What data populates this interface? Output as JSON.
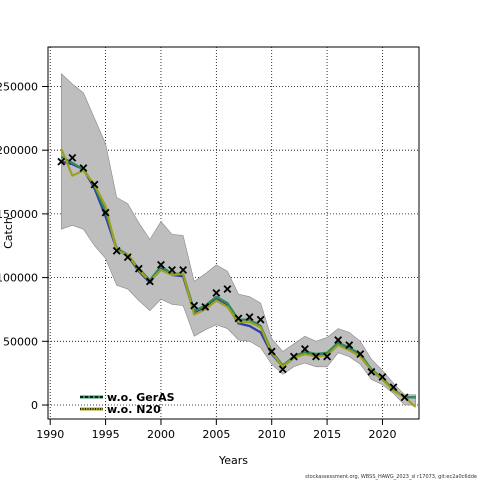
{
  "chart_data": {
    "type": "line",
    "title": "",
    "xlabel": "Years",
    "ylabel": "Catch",
    "xlim": [
      1989.8,
      2023.3
    ],
    "ylim": [
      -11000,
      281000
    ],
    "x_ticks": [
      1990,
      1995,
      2000,
      2005,
      2010,
      2015,
      2020
    ],
    "y_ticks": [
      0,
      50000,
      100000,
      150000,
      200000,
      250000
    ],
    "grid": true,
    "legend_position": "bottom-left",
    "colors": {
      "band": "#bebebe",
      "band_edge": "#888888",
      "blue": "#2a3fa0",
      "green": "#2e8b57",
      "olive": "#a0a020",
      "observed": "#000000"
    },
    "observed": {
      "marker": "x",
      "x": [
        1991,
        1992,
        1993,
        1994,
        1995,
        1996,
        1997,
        1998,
        1999,
        2000,
        2001,
        2002,
        2003,
        2004,
        2005,
        2006,
        2007,
        2008,
        2009,
        2010,
        2011,
        2012,
        2013,
        2014,
        2015,
        2016,
        2017,
        2018,
        2019,
        2020,
        2021,
        2022
      ],
      "y": [
        191000,
        194000,
        186000,
        173000,
        151000,
        121000,
        116000,
        107000,
        97000,
        110000,
        106000,
        106000,
        78000,
        77000,
        88000,
        91000,
        68000,
        69000,
        67000,
        42000,
        28000,
        38000,
        44000,
        38000,
        38000,
        51000,
        47000,
        40000,
        26000,
        22000,
        14000,
        6000
      ]
    },
    "confidence_band": {
      "x": [
        1991,
        1992,
        1993,
        1994,
        1995,
        1996,
        1997,
        1998,
        1999,
        2000,
        2001,
        2002,
        2003,
        2004,
        2005,
        2006,
        2007,
        2008,
        2009,
        2010,
        2011,
        2012,
        2013,
        2014,
        2015,
        2016,
        2017,
        2018,
        2019,
        2020,
        2021,
        2022,
        2023
      ],
      "upper": [
        260000,
        252000,
        245000,
        225000,
        205000,
        163000,
        158000,
        143000,
        130000,
        144000,
        134000,
        133000,
        97000,
        103000,
        110000,
        105000,
        87000,
        85000,
        80000,
        52000,
        42000,
        48000,
        54000,
        50000,
        53000,
        60000,
        57000,
        50000,
        36000,
        27000,
        17000,
        8000,
        8000
      ],
      "lower": [
        138000,
        141000,
        138000,
        125000,
        115000,
        94000,
        91000,
        82000,
        74000,
        83000,
        79000,
        78000,
        54000,
        59000,
        63000,
        60000,
        51000,
        50000,
        45000,
        32000,
        24000,
        30000,
        33000,
        30000,
        30000,
        41000,
        38000,
        32000,
        20000,
        16000,
        9000,
        0,
        0
      ]
    },
    "series": [
      {
        "name": "",
        "color": "#2a3fa0",
        "x": [
          1991,
          1992,
          1993,
          1994,
          1995,
          1996,
          1997,
          1998,
          1999,
          2000,
          2001,
          2002,
          2003,
          2004,
          2005,
          2006,
          2007,
          2008,
          2009,
          2010,
          2011,
          2012,
          2013,
          2014,
          2015,
          2016,
          2017,
          2018,
          2019,
          2020,
          2021,
          2022,
          2023
        ],
        "values": [
          191000,
          189000,
          185000,
          170000,
          148000,
          122000,
          117000,
          105000,
          96000,
          108000,
          102000,
          101000,
          72000,
          76000,
          83000,
          78000,
          64000,
          62000,
          57000,
          40000,
          30000,
          37000,
          41000,
          39000,
          40000,
          48000,
          44000,
          39000,
          27000,
          20000,
          12000,
          6000,
          6000
        ]
      },
      {
        "name": "w.o. GerAS",
        "color": "#2e8b57",
        "x": [
          1991,
          1992,
          1993,
          1994,
          1995,
          1996,
          1997,
          1998,
          1999,
          2000,
          2001,
          2002,
          2003,
          2004,
          2005,
          2006,
          2007,
          2008,
          2009,
          2010,
          2011,
          2012,
          2013,
          2014,
          2015,
          2016,
          2017,
          2018,
          2019,
          2020,
          2021,
          2022,
          2023
        ],
        "values": [
          195000,
          190000,
          185000,
          172000,
          152000,
          123000,
          118000,
          107000,
          98000,
          109000,
          103000,
          103000,
          74000,
          78000,
          85000,
          80000,
          67000,
          67000,
          62000,
          42000,
          31000,
          38000,
          42000,
          40000,
          41000,
          49000,
          45000,
          40000,
          28000,
          21000,
          12000,
          6000,
          6000
        ]
      },
      {
        "name": "w.o. N20",
        "color": "#a0a020",
        "x": [
          1991,
          1992,
          1993,
          1994,
          1995,
          1996,
          1997,
          1998,
          1999,
          2000,
          2001,
          2002,
          2003,
          2004,
          2005,
          2006,
          2007,
          2008,
          2009,
          2010,
          2011,
          2012,
          2013,
          2014,
          2015,
          2016,
          2017,
          2018,
          2019,
          2020,
          2021,
          2022,
          2023
        ],
        "values": [
          201000,
          180000,
          184000,
          173000,
          156000,
          121000,
          118000,
          106000,
          97000,
          106000,
          102000,
          103000,
          71000,
          75000,
          82000,
          77000,
          65000,
          65000,
          61000,
          41000,
          30000,
          37000,
          40000,
          38000,
          39000,
          47000,
          43000,
          38000,
          27000,
          20000,
          11000,
          6000,
          -1500
        ]
      }
    ],
    "legend": [
      {
        "label": "w.o. GerAS",
        "color": "#2e8b57",
        "style": "dashed"
      },
      {
        "label": "w.o. N20",
        "color": "#a0a020",
        "style": "dotted"
      }
    ],
    "credit": "stockassessment.org, WBSS_HAWG_2023_sl r17073, git:ec2a0c6dde"
  }
}
